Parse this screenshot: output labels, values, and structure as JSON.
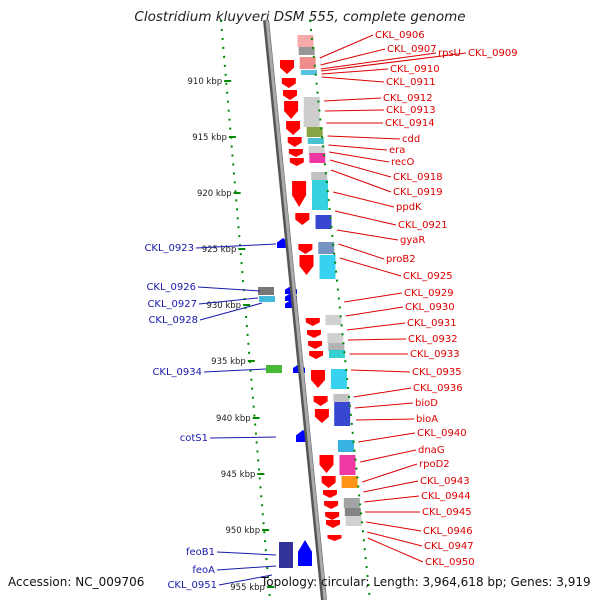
{
  "title": "Clostridium kluyveri DSM 555, complete genome",
  "footer": {
    "accession": "Accession: NC_009706",
    "summary": "Topology: circular; Length: 3,964,618 bp; Genes: 3,919"
  },
  "ticks": [
    "910 kbp",
    "915 kbp",
    "920 kbp",
    "925 kbp",
    "930 kbp",
    "935 kbp",
    "940 kbp",
    "945 kbp",
    "950 kbp",
    "955 kbp"
  ],
  "right_genes": [
    {
      "name": "CKL_0906",
      "color": "#ff0000"
    },
    {
      "name": "CKL_0907",
      "color": "#ff0000"
    },
    {
      "name": "rpsU",
      "color": "#ff0000"
    },
    {
      "name": "CKL_0909",
      "color": "#ff0000"
    },
    {
      "name": "CKL_0910",
      "color": "#ff0000"
    },
    {
      "name": "CKL_0911",
      "color": "#ff0000"
    },
    {
      "name": "CKL_0912",
      "color": "#ff0000"
    },
    {
      "name": "CKL_0913",
      "color": "#ff0000"
    },
    {
      "name": "CKL_0914",
      "color": "#ff0000"
    },
    {
      "name": "cdd",
      "color": "#ff0000"
    },
    {
      "name": "era",
      "color": "#ff0000"
    },
    {
      "name": "recO",
      "color": "#ff0000"
    },
    {
      "name": "CKL_0918",
      "color": "#ff0000"
    },
    {
      "name": "CKL_0919",
      "color": "#ff0000"
    },
    {
      "name": "ppdK",
      "color": "#ff0000"
    },
    {
      "name": "CKL_0921",
      "color": "#ff0000"
    },
    {
      "name": "gyaR",
      "color": "#ff0000"
    },
    {
      "name": "proB2",
      "color": "#ff0000"
    },
    {
      "name": "CKL_0925",
      "color": "#ff0000"
    },
    {
      "name": "CKL_0929",
      "color": "#ff0000"
    },
    {
      "name": "CKL_0930",
      "color": "#ff0000"
    },
    {
      "name": "CKL_0931",
      "color": "#ff0000"
    },
    {
      "name": "CKL_0932",
      "color": "#ff0000"
    },
    {
      "name": "CKL_0933",
      "color": "#ff0000"
    },
    {
      "name": "CKL_0935",
      "color": "#ff0000"
    },
    {
      "name": "CKL_0936",
      "color": "#ff0000"
    },
    {
      "name": "bioD",
      "color": "#ff0000"
    },
    {
      "name": "bioA",
      "color": "#ff0000"
    },
    {
      "name": "CKL_0940",
      "color": "#ff0000"
    },
    {
      "name": "dnaG",
      "color": "#ff0000"
    },
    {
      "name": "rpoD2",
      "color": "#ff0000"
    },
    {
      "name": "CKL_0943",
      "color": "#ff0000"
    },
    {
      "name": "CKL_0944",
      "color": "#ff0000"
    },
    {
      "name": "CKL_0945",
      "color": "#ff0000"
    },
    {
      "name": "CKL_0946",
      "color": "#ff0000"
    },
    {
      "name": "CKL_0947",
      "color": "#ff0000"
    },
    {
      "name": "CKL_0950",
      "color": "#ff0000"
    }
  ],
  "left_genes": [
    {
      "name": "CKL_0923",
      "color": "#0000ff"
    },
    {
      "name": "CKL_0926",
      "color": "#0000ff"
    },
    {
      "name": "CKL_0927",
      "color": "#0000ff"
    },
    {
      "name": "CKL_0928",
      "color": "#0000ff"
    },
    {
      "name": "CKL_0934",
      "color": "#0000ff"
    },
    {
      "name": "cotS1",
      "color": "#0000ff"
    },
    {
      "name": "feoB1",
      "color": "#0000ff"
    },
    {
      "name": "feoA",
      "color": "#0000ff"
    },
    {
      "name": "CKL_0951",
      "color": "#0000ff"
    }
  ],
  "colors": {
    "forward_strand": "#ff0000",
    "reverse_strand": "#0000ff",
    "backbone": "#888888",
    "gc_dots": "#008800"
  }
}
